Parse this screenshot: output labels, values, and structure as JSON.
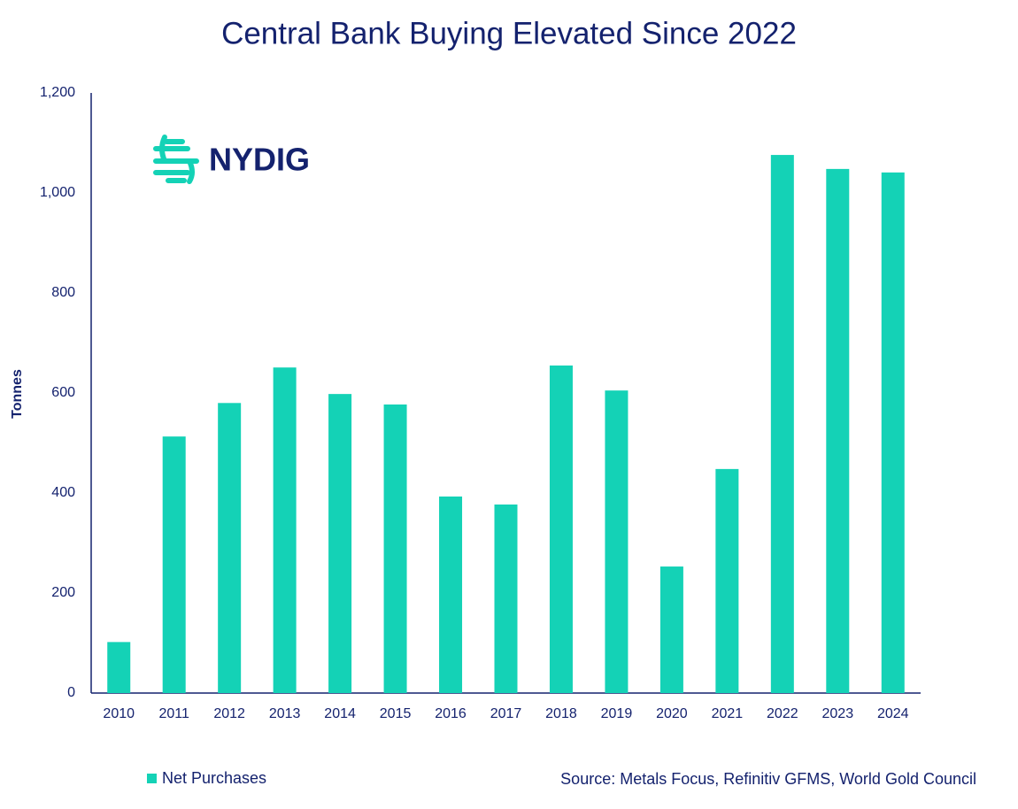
{
  "chart_data": {
    "type": "bar",
    "title": "Central Bank Buying Elevated Since 2022",
    "logo": "NYDIG",
    "y_label": "Tonnes",
    "source": "Source: Metals Focus, Refinitiv GFMS, World Gold Council",
    "categories": [
      "2010",
      "2011",
      "2012",
      "2013",
      "2014",
      "2015",
      "2016",
      "2017",
      "2018",
      "2019",
      "2020",
      "2021",
      "2022",
      "2023",
      "2024"
    ],
    "series": [
      {
        "name": "Net Purchases",
        "color": "#14d2b6",
        "values": [
          102,
          513,
          580,
          651,
          598,
          577,
          393,
          377,
          655,
          605,
          253,
          448,
          1076,
          1048,
          1041
        ]
      }
    ],
    "ylim": [
      0,
      1200
    ],
    "yticks": [
      0,
      200,
      400,
      600,
      800,
      {
        "value": 1000,
        "label": "1,000"
      },
      {
        "value": 1200,
        "label": "1,200"
      }
    ],
    "grid": false,
    "legend": "bottom-left"
  }
}
